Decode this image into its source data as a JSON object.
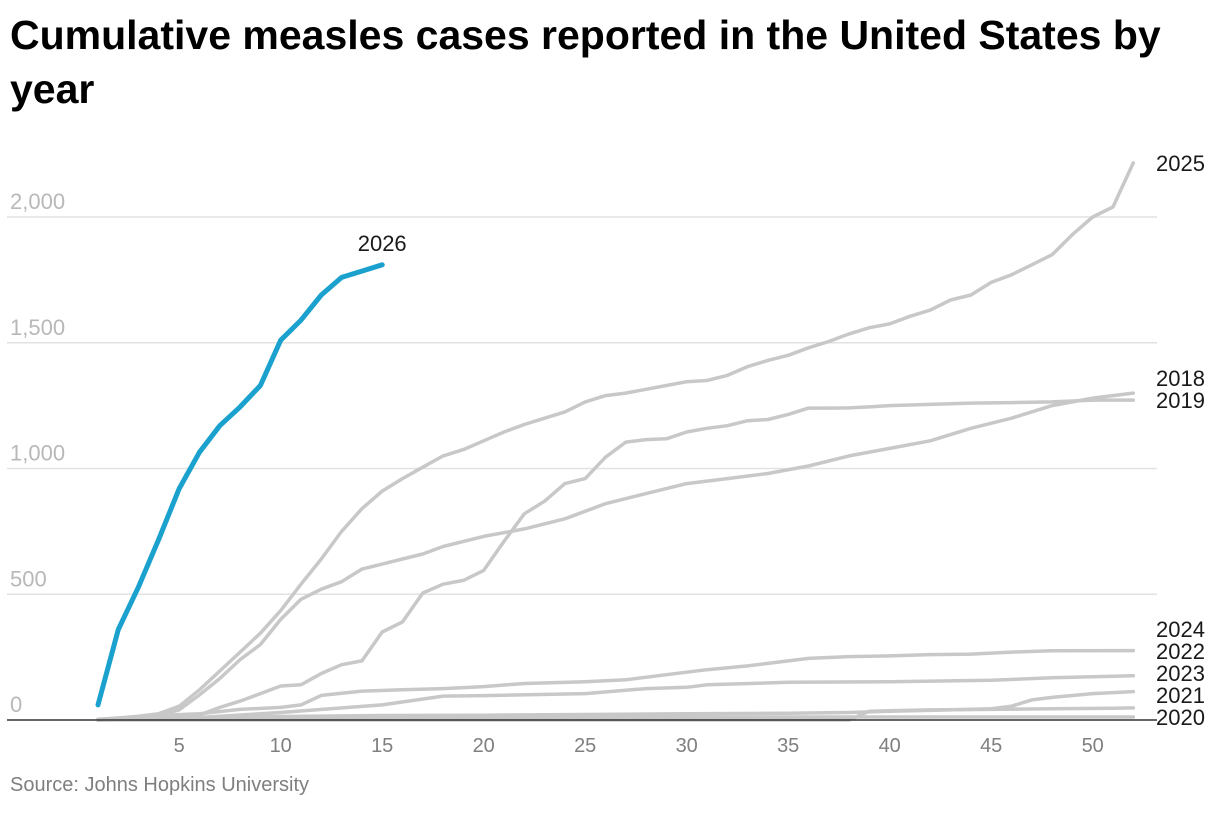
{
  "chart_data": {
    "type": "line",
    "title": "Cumulative measles cases reported in the United States by year",
    "source": "Source: Johns Hopkins University",
    "xlabel": "",
    "ylabel": "",
    "xlim": [
      1,
      52
    ],
    "ylim": [
      0,
      2200
    ],
    "x_ticks": [
      5,
      10,
      15,
      20,
      25,
      30,
      35,
      40,
      45,
      50
    ],
    "y_ticks": [
      {
        "value": 0,
        "label": "0"
      },
      {
        "value": 500,
        "label": "500"
      },
      {
        "value": 1000,
        "label": "1,000"
      },
      {
        "value": 1500,
        "label": "1,500"
      },
      {
        "value": 2000,
        "label": "2,000"
      }
    ],
    "grid": "horizontal",
    "colors": {
      "highlight": "#1aa1cd",
      "muted": "#c8c8c8",
      "grid": "#e2e2e2",
      "baseline": "#333333"
    },
    "series": [
      {
        "name": "2020",
        "highlight": false,
        "values": [
          [
            1,
            2
          ],
          [
            5,
            5
          ],
          [
            10,
            8
          ],
          [
            15,
            10
          ],
          [
            20,
            11
          ],
          [
            30,
            12
          ],
          [
            40,
            12
          ],
          [
            52,
            12
          ]
        ]
      },
      {
        "name": "2021",
        "highlight": false,
        "values": [
          [
            1,
            0
          ],
          [
            10,
            0
          ],
          [
            20,
            0
          ],
          [
            30,
            0
          ],
          [
            38,
            0
          ],
          [
            39,
            35
          ],
          [
            42,
            40
          ],
          [
            45,
            42
          ],
          [
            48,
            45
          ],
          [
            51,
            47
          ],
          [
            52,
            48
          ]
        ]
      },
      {
        "name": "2023",
        "highlight": false,
        "values": [
          [
            1,
            0
          ],
          [
            5,
            10
          ],
          [
            10,
            14
          ],
          [
            15,
            18
          ],
          [
            20,
            19
          ],
          [
            25,
            22
          ],
          [
            30,
            25
          ],
          [
            35,
            27
          ],
          [
            38,
            30
          ],
          [
            40,
            35
          ],
          [
            42,
            38
          ],
          [
            45,
            45
          ],
          [
            46,
            55
          ],
          [
            47,
            80
          ],
          [
            48,
            90
          ],
          [
            50,
            105
          ],
          [
            52,
            113
          ]
        ]
      },
      {
        "name": "2022",
        "highlight": false,
        "values": [
          [
            1,
            0
          ],
          [
            5,
            5
          ],
          [
            10,
            30
          ],
          [
            15,
            60
          ],
          [
            18,
            95
          ],
          [
            20,
            97
          ],
          [
            25,
            105
          ],
          [
            28,
            125
          ],
          [
            30,
            130
          ],
          [
            31,
            140
          ],
          [
            35,
            150
          ],
          [
            40,
            152
          ],
          [
            45,
            158
          ],
          [
            48,
            168
          ],
          [
            52,
            176
          ]
        ]
      },
      {
        "name": "2024",
        "highlight": false,
        "values": [
          [
            1,
            3
          ],
          [
            4,
            18
          ],
          [
            6,
            25
          ],
          [
            8,
            42
          ],
          [
            10,
            50
          ],
          [
            11,
            60
          ],
          [
            12,
            98
          ],
          [
            14,
            115
          ],
          [
            16,
            120
          ],
          [
            18,
            125
          ],
          [
            20,
            133
          ],
          [
            22,
            145
          ],
          [
            25,
            152
          ],
          [
            27,
            160
          ],
          [
            29,
            180
          ],
          [
            31,
            200
          ],
          [
            33,
            215
          ],
          [
            35,
            235
          ],
          [
            36,
            245
          ],
          [
            38,
            252
          ],
          [
            40,
            255
          ],
          [
            42,
            260
          ],
          [
            44,
            262
          ],
          [
            46,
            270
          ],
          [
            48,
            275
          ],
          [
            52,
            276
          ]
        ]
      },
      {
        "name": "2018",
        "highlight": false,
        "values": [
          [
            1,
            0
          ],
          [
            2,
            5
          ],
          [
            3,
            12
          ],
          [
            4,
            20
          ],
          [
            5,
            40
          ],
          [
            6,
            100
          ],
          [
            7,
            165
          ],
          [
            8,
            240
          ],
          [
            9,
            300
          ],
          [
            10,
            400
          ],
          [
            11,
            480
          ],
          [
            12,
            520
          ],
          [
            13,
            550
          ],
          [
            14,
            600
          ],
          [
            15,
            620
          ],
          [
            16,
            640
          ],
          [
            17,
            660
          ],
          [
            18,
            690
          ],
          [
            19,
            710
          ],
          [
            20,
            730
          ],
          [
            22,
            760
          ],
          [
            24,
            800
          ],
          [
            26,
            860
          ],
          [
            28,
            900
          ],
          [
            30,
            940
          ],
          [
            32,
            960
          ],
          [
            34,
            980
          ],
          [
            36,
            1010
          ],
          [
            38,
            1050
          ],
          [
            40,
            1080
          ],
          [
            42,
            1110
          ],
          [
            44,
            1160
          ],
          [
            46,
            1200
          ],
          [
            48,
            1250
          ],
          [
            50,
            1280
          ],
          [
            52,
            1300
          ]
        ]
      },
      {
        "name": "2019",
        "highlight": false,
        "values": [
          [
            1,
            0
          ],
          [
            3,
            10
          ],
          [
            5,
            15
          ],
          [
            6,
            20
          ],
          [
            7,
            50
          ],
          [
            8,
            75
          ],
          [
            9,
            105
          ],
          [
            10,
            135
          ],
          [
            11,
            140
          ],
          [
            12,
            185
          ],
          [
            13,
            220
          ],
          [
            14,
            235
          ],
          [
            15,
            350
          ],
          [
            16,
            390
          ],
          [
            17,
            505
          ],
          [
            18,
            540
          ],
          [
            19,
            555
          ],
          [
            20,
            595
          ],
          [
            21,
            710
          ],
          [
            22,
            820
          ],
          [
            23,
            870
          ],
          [
            24,
            940
          ],
          [
            25,
            960
          ],
          [
            26,
            1045
          ],
          [
            27,
            1105
          ],
          [
            28,
            1115
          ],
          [
            29,
            1118
          ],
          [
            30,
            1145
          ],
          [
            31,
            1160
          ],
          [
            32,
            1170
          ],
          [
            33,
            1190
          ],
          [
            34,
            1195
          ],
          [
            35,
            1215
          ],
          [
            36,
            1240
          ],
          [
            37,
            1240
          ],
          [
            38,
            1241
          ],
          [
            39,
            1245
          ],
          [
            40,
            1250
          ],
          [
            42,
            1255
          ],
          [
            44,
            1260
          ],
          [
            46,
            1262
          ],
          [
            48,
            1265
          ],
          [
            50,
            1272
          ],
          [
            52,
            1272
          ]
        ]
      },
      {
        "name": "2025",
        "highlight": false,
        "values": [
          [
            1,
            0
          ],
          [
            3,
            15
          ],
          [
            4,
            25
          ],
          [
            5,
            55
          ],
          [
            6,
            120
          ],
          [
            7,
            195
          ],
          [
            8,
            270
          ],
          [
            9,
            345
          ],
          [
            10,
            435
          ],
          [
            11,
            540
          ],
          [
            12,
            640
          ],
          [
            13,
            750
          ],
          [
            14,
            840
          ],
          [
            15,
            910
          ],
          [
            16,
            960
          ],
          [
            17,
            1005
          ],
          [
            18,
            1050
          ],
          [
            19,
            1075
          ],
          [
            20,
            1110
          ],
          [
            21,
            1145
          ],
          [
            22,
            1175
          ],
          [
            23,
            1200
          ],
          [
            24,
            1225
          ],
          [
            25,
            1265
          ],
          [
            26,
            1290
          ],
          [
            27,
            1300
          ],
          [
            28,
            1315
          ],
          [
            29,
            1330
          ],
          [
            30,
            1345
          ],
          [
            31,
            1350
          ],
          [
            32,
            1370
          ],
          [
            33,
            1405
          ],
          [
            34,
            1430
          ],
          [
            35,
            1450
          ],
          [
            36,
            1480
          ],
          [
            37,
            1505
          ],
          [
            38,
            1535
          ],
          [
            39,
            1560
          ],
          [
            40,
            1575
          ],
          [
            41,
            1605
          ],
          [
            42,
            1630
          ],
          [
            43,
            1670
          ],
          [
            44,
            1690
          ],
          [
            45,
            1740
          ],
          [
            46,
            1770
          ],
          [
            47,
            1810
          ],
          [
            48,
            1850
          ],
          [
            49,
            1930
          ],
          [
            50,
            2000
          ],
          [
            51,
            2040
          ],
          [
            52,
            2215
          ]
        ]
      },
      {
        "name": "2026",
        "highlight": true,
        "values": [
          [
            1,
            60
          ],
          [
            2,
            360
          ],
          [
            3,
            530
          ],
          [
            4,
            720
          ],
          [
            5,
            920
          ],
          [
            6,
            1065
          ],
          [
            7,
            1170
          ],
          [
            8,
            1245
          ],
          [
            9,
            1330
          ],
          [
            10,
            1510
          ],
          [
            11,
            1590
          ],
          [
            12,
            1690
          ],
          [
            13,
            1760
          ],
          [
            14,
            1785
          ],
          [
            15,
            1810
          ]
        ]
      }
    ]
  }
}
